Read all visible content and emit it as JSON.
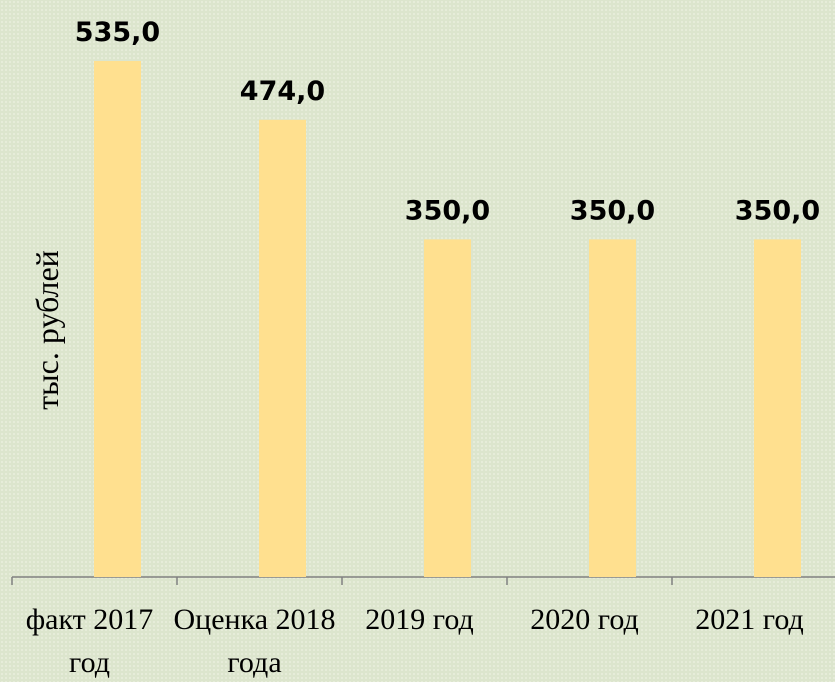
{
  "chart_data": {
    "type": "bar",
    "y_axis_label": "тыс. рублей",
    "categories": [
      "факт 2017 год",
      "Оценка 2018 года",
      "2019 год",
      "2020 год",
      "2021 год"
    ],
    "values": [
      535,
      474,
      350,
      350,
      350
    ],
    "value_labels": [
      "535,0",
      "474,0",
      "350,0",
      "350,0",
      "350,0"
    ],
    "color": "#ffe08f"
  }
}
